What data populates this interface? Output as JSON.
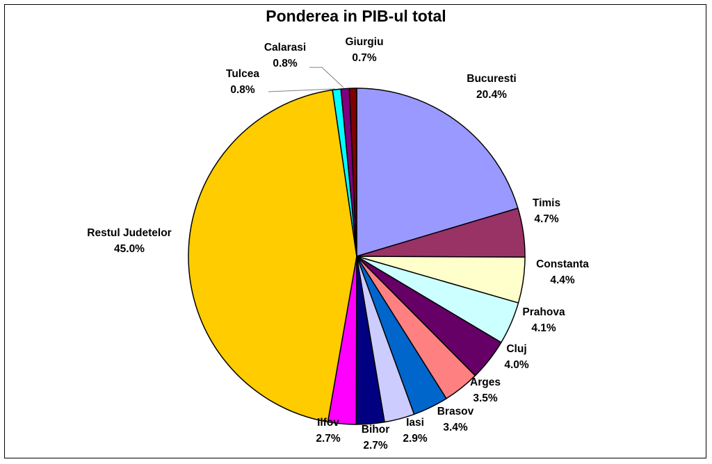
{
  "chart_data": {
    "type": "pie",
    "title": "Ponderea in PIB-ul total",
    "slices": [
      {
        "label": "Bucuresti",
        "pct_text": "20.4%",
        "value": 20.4,
        "color": "#9999ff"
      },
      {
        "label": "Timis",
        "pct_text": "4.7%",
        "value": 4.7,
        "color": "#993366"
      },
      {
        "label": "Constanta",
        "pct_text": "4.4%",
        "value": 4.4,
        "color": "#ffffcc"
      },
      {
        "label": "Prahova",
        "pct_text": "4.1%",
        "value": 4.1,
        "color": "#ccffff"
      },
      {
        "label": "Cluj",
        "pct_text": "4.0%",
        "value": 4.0,
        "color": "#660066"
      },
      {
        "label": "Arges",
        "pct_text": "3.5%",
        "value": 3.5,
        "color": "#ff8080"
      },
      {
        "label": "Brasov",
        "pct_text": "3.4%",
        "value": 3.4,
        "color": "#0066cc"
      },
      {
        "label": "Iasi",
        "pct_text": "2.9%",
        "value": 2.9,
        "color": "#ccccff"
      },
      {
        "label": "Bihor",
        "pct_text": "2.7%",
        "value": 2.7,
        "color": "#000080"
      },
      {
        "label": "Ilfov",
        "pct_text": "2.7%",
        "value": 2.7,
        "color": "#ff00ff"
      },
      {
        "label": "Restul Judetelor",
        "pct_text": "45.0%",
        "value": 45.0,
        "color": "#ffcc00"
      },
      {
        "label": "Tulcea",
        "pct_text": "0.8%",
        "value": 0.8,
        "color": "#00ffff"
      },
      {
        "label": "Calarasi",
        "pct_text": "0.8%",
        "value": 0.8,
        "color": "#800080"
      },
      {
        "label": "Giurgiu",
        "pct_text": "0.7%",
        "value": 0.7,
        "color": "#800000"
      }
    ],
    "start_angle": "12 o'clock",
    "direction": "clockwise",
    "legend": "none",
    "data_labels": "outside, name and percentage"
  }
}
